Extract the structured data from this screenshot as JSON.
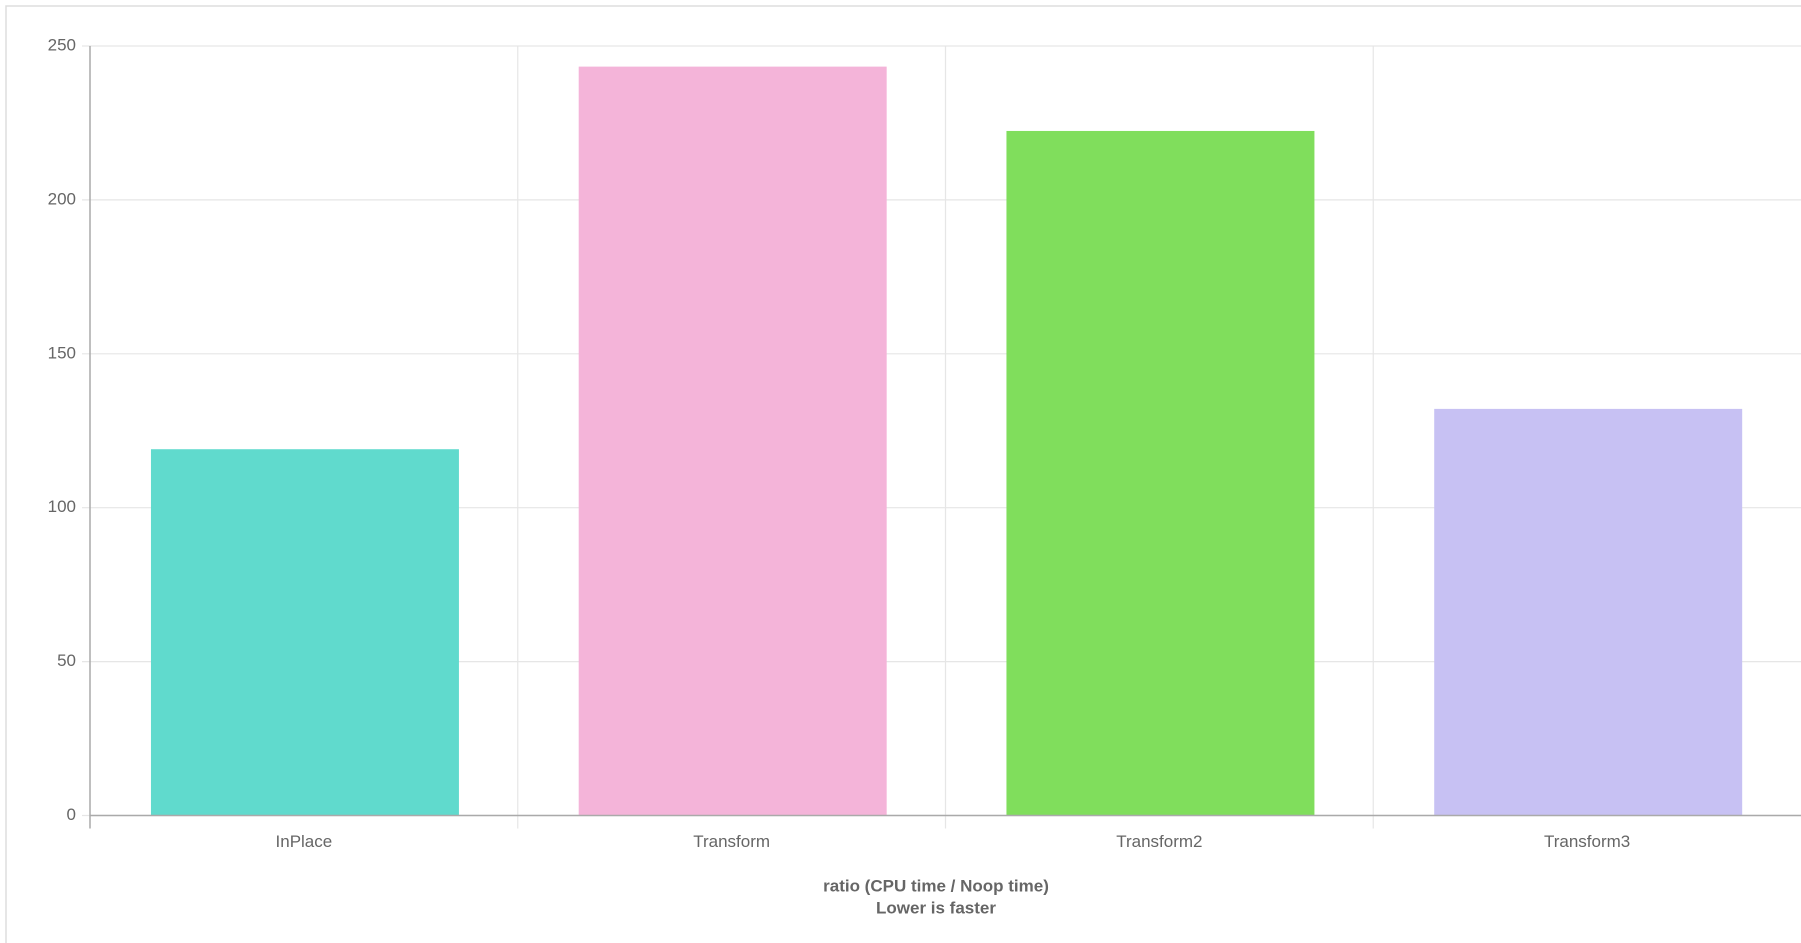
{
  "chart_data": {
    "type": "bar",
    "categories": [
      "InPlace",
      "Transform",
      "Transform2",
      "Transform3"
    ],
    "values": [
      119.0,
      243.3,
      222.4,
      132.1
    ],
    "colors": [
      "#60dacd",
      "#f4b4d9",
      "#80de5c",
      "#c7c1f3"
    ],
    "x_label": [
      "ratio (CPU time / Noop time)",
      "Lower is faster"
    ],
    "ylim": [
      0,
      250
    ],
    "yticks": [
      0,
      50,
      100,
      150,
      200,
      250
    ],
    "grid": true
  }
}
